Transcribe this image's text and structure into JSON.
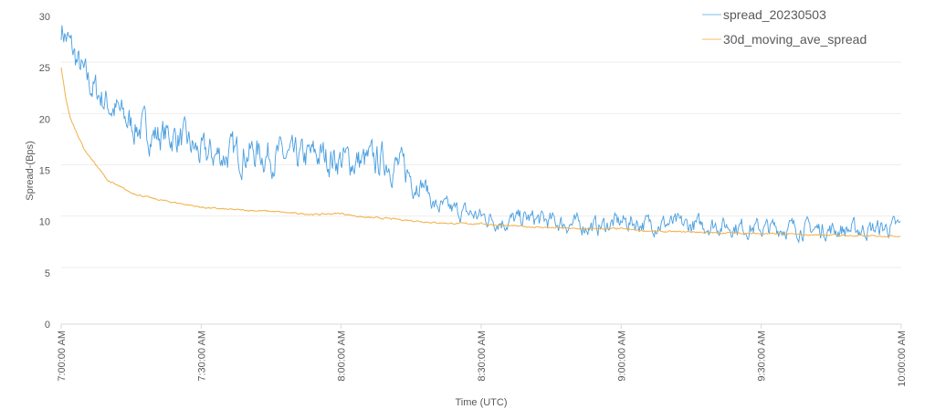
{
  "chart_data": {
    "type": "line",
    "title": "",
    "xlabel": "Time (UTC)",
    "ylabel": "Spread-(Bps)",
    "ylim": [
      0,
      30
    ],
    "yticks": [
      0,
      5,
      10,
      15,
      20,
      25,
      30
    ],
    "xlim_minutes": [
      0,
      180
    ],
    "xticks": [
      {
        "minute": 0,
        "label": "7:00:00 AM"
      },
      {
        "minute": 30,
        "label": "7:30:00 AM"
      },
      {
        "minute": 60,
        "label": "8:00:00 AM"
      },
      {
        "minute": 90,
        "label": "8:30:00 AM"
      },
      {
        "minute": 120,
        "label": "9:00:00 AM"
      },
      {
        "minute": 150,
        "label": "9:30:00 AM"
      },
      {
        "minute": 180,
        "label": "10:00:00 AM"
      }
    ],
    "grid": true,
    "legend_position": "top-right",
    "series": [
      {
        "name": "spread_20230503",
        "color": "#4a9fe0",
        "x_minutes": [
          0,
          2,
          5,
          10,
          15,
          20,
          25,
          30,
          35,
          40,
          45,
          50,
          55,
          60,
          65,
          70,
          75,
          78,
          80,
          85,
          90,
          95,
          100,
          105,
          110,
          115,
          120,
          125,
          130,
          135,
          140,
          145,
          150,
          155,
          160,
          165,
          170,
          175,
          180
        ],
        "values": [
          29,
          27,
          24,
          21.5,
          19.5,
          18.5,
          18.3,
          16.5,
          16.5,
          16.8,
          16.5,
          16,
          16.5,
          16,
          15.8,
          16,
          14.5,
          13.5,
          11.5,
          11,
          10.5,
          10,
          10.3,
          10,
          9.7,
          9.5,
          10,
          9.8,
          9.8,
          9.6,
          9.7,
          9.5,
          9.3,
          9.4,
          9.3,
          9.2,
          9.2,
          9.3,
          9.5
        ]
      },
      {
        "name": "30d_moving_ave_spread",
        "color": "#f0b046",
        "x_minutes": [
          0,
          1,
          2,
          5,
          10,
          15,
          20,
          25,
          30,
          35,
          40,
          45,
          50,
          55,
          60,
          65,
          70,
          75,
          80,
          85,
          90,
          95,
          100,
          105,
          110,
          115,
          120,
          125,
          130,
          135,
          140,
          145,
          150,
          155,
          160,
          165,
          170,
          175,
          180
        ],
        "values": [
          25,
          22,
          20,
          17,
          14,
          12.8,
          12.2,
          11.8,
          11.4,
          11.2,
          11.1,
          11,
          10.8,
          10.7,
          10.8,
          10.4,
          10.3,
          10.1,
          9.9,
          9.8,
          9.8,
          9.6,
          9.5,
          9.4,
          9.3,
          9.3,
          9.3,
          9.1,
          9.0,
          9.0,
          8.9,
          8.9,
          8.8,
          8.8,
          8.7,
          8.7,
          8.6,
          8.6,
          8.6
        ]
      }
    ]
  }
}
